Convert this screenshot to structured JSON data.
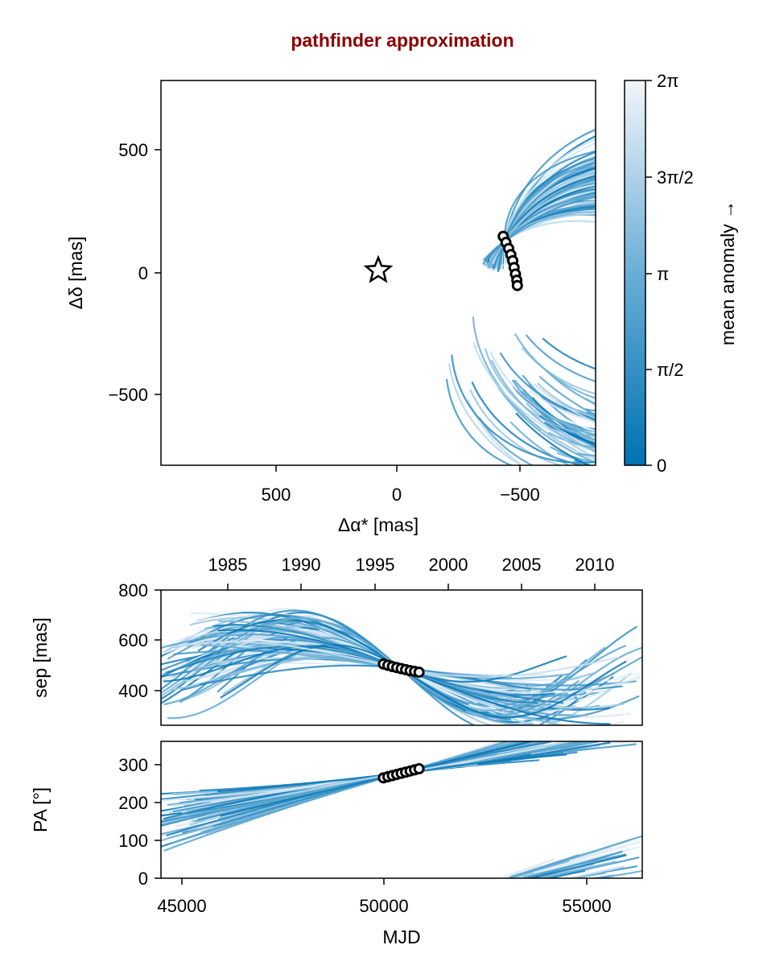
{
  "title": "pathfinder approximation",
  "colorbar": {
    "label": "mean anomaly →",
    "ticks": [
      "0",
      "π/2",
      "π",
      "3π/2",
      "2π"
    ],
    "color_low": "#0072b2",
    "color_high": "#f2f6fa"
  },
  "chart_data": [
    {
      "type": "line",
      "panel": "sky",
      "xlabel": "Δα* [mas]",
      "ylabel": "Δδ [mas]",
      "xlim": [
        800,
        -800
      ],
      "ylim": [
        -800,
        780
      ],
      "xticks": [
        "500",
        "0",
        "−500"
      ],
      "yticks": [
        "500",
        "0",
        "−500"
      ],
      "star": {
        "x": 0,
        "y": 0
      },
      "observations": [
        {
          "x": -460,
          "y": 140
        },
        {
          "x": -470,
          "y": 115
        },
        {
          "x": -480,
          "y": 90
        },
        {
          "x": -488,
          "y": 65
        },
        {
          "x": -495,
          "y": 40
        },
        {
          "x": -500,
          "y": 12
        },
        {
          "x": -505,
          "y": -15
        },
        {
          "x": -510,
          "y": -40
        },
        {
          "x": -512,
          "y": -62
        }
      ]
    },
    {
      "type": "line",
      "panel": "separation",
      "ylabel": "sep [mas]",
      "xlim": [
        44500,
        56400
      ],
      "ylim": [
        270,
        800
      ],
      "yticks": [
        "400",
        "600",
        "800"
      ],
      "top_axis_ticks": [
        "1985",
        "1990",
        "1995",
        "2000",
        "2005",
        "2010"
      ],
      "observations": [
        {
          "x": 50000,
          "y": 510
        },
        {
          "x": 50110,
          "y": 505
        },
        {
          "x": 50220,
          "y": 500
        },
        {
          "x": 50330,
          "y": 496
        },
        {
          "x": 50440,
          "y": 492
        },
        {
          "x": 50550,
          "y": 488
        },
        {
          "x": 50660,
          "y": 484
        },
        {
          "x": 50770,
          "y": 481
        },
        {
          "x": 50880,
          "y": 478
        }
      ]
    },
    {
      "type": "line",
      "panel": "position-angle",
      "ylabel": "PA [°]",
      "xlabel": "MJD",
      "xlim": [
        44500,
        56400
      ],
      "ylim": [
        0,
        360
      ],
      "yticks": [
        "0",
        "100",
        "200",
        "300"
      ],
      "xticks": [
        "45000",
        "50000",
        "55000"
      ],
      "observations": [
        {
          "x": 50000,
          "y": 264
        },
        {
          "x": 50110,
          "y": 267
        },
        {
          "x": 50220,
          "y": 270
        },
        {
          "x": 50330,
          "y": 273
        },
        {
          "x": 50440,
          "y": 276
        },
        {
          "x": 50550,
          "y": 279
        },
        {
          "x": 50660,
          "y": 282
        },
        {
          "x": 50770,
          "y": 285
        },
        {
          "x": 50880,
          "y": 288
        }
      ]
    }
  ]
}
